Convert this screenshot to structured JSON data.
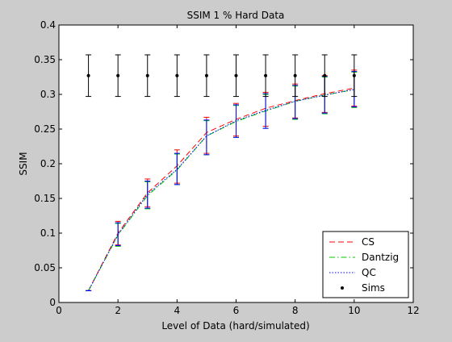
{
  "chart_data": {
    "type": "line",
    "title": "SSIM 1 % Hard Data",
    "xlabel": "Level of Data (hard/simulated)",
    "ylabel": "SSIM",
    "xlim": [
      0,
      12
    ],
    "ylim": [
      0,
      0.4
    ],
    "xticks": [
      0,
      2,
      4,
      6,
      8,
      10,
      12
    ],
    "yticks": [
      0,
      0.05,
      0.1,
      0.15,
      0.2,
      0.25,
      0.3,
      0.35,
      0.4
    ],
    "grid": false,
    "legend_position": "bottom-right",
    "x": [
      1,
      2,
      3,
      4,
      5,
      6,
      7,
      8,
      9,
      10
    ],
    "series": [
      {
        "name": "CS",
        "color": "#ff0000",
        "style": "dashed",
        "errorbar_color": "#ff0000",
        "values": [
          0.017,
          0.1,
          0.158,
          0.197,
          0.245,
          0.264,
          0.28,
          0.291,
          0.301,
          0.309
        ],
        "lower": [
          0.017,
          0.083,
          0.138,
          0.172,
          0.215,
          0.24,
          0.254,
          0.266,
          0.274,
          0.283
        ],
        "upper": [
          0.017,
          0.117,
          0.178,
          0.22,
          0.267,
          0.287,
          0.303,
          0.315,
          0.327,
          0.335
        ]
      },
      {
        "name": "Dantzig",
        "color": "#00cc00",
        "style": "dashdot",
        "errorbar_color": "#00cc00",
        "values": [
          0.017,
          0.097,
          0.154,
          0.191,
          0.24,
          0.261,
          0.276,
          0.29,
          0.299,
          0.307
        ],
        "lower": [
          0.017,
          0.081,
          0.135,
          0.17,
          0.213,
          0.238,
          0.251,
          0.264,
          0.272,
          0.281
        ],
        "upper": [
          0.017,
          0.114,
          0.174,
          0.214,
          0.262,
          0.284,
          0.3,
          0.312,
          0.325,
          0.332
        ]
      },
      {
        "name": "QC",
        "color": "#0000ff",
        "style": "dotted",
        "errorbar_color": "#0000ff",
        "values": [
          0.017,
          0.098,
          0.156,
          0.192,
          0.24,
          0.262,
          0.277,
          0.29,
          0.299,
          0.307
        ],
        "lower": [
          0.017,
          0.082,
          0.136,
          0.17,
          0.213,
          0.238,
          0.251,
          0.265,
          0.273,
          0.282
        ],
        "upper": [
          0.017,
          0.115,
          0.175,
          0.215,
          0.263,
          0.285,
          0.301,
          0.313,
          0.326,
          0.333
        ]
      },
      {
        "name": "Sims",
        "color": "#000000",
        "style": "points",
        "errorbar_color": "#000000",
        "values": [
          0.327,
          0.327,
          0.327,
          0.327,
          0.327,
          0.327,
          0.327,
          0.327,
          0.327,
          0.327
        ],
        "lower": [
          0.297,
          0.297,
          0.297,
          0.297,
          0.297,
          0.297,
          0.297,
          0.297,
          0.297,
          0.297
        ],
        "upper": [
          0.357,
          0.357,
          0.357,
          0.357,
          0.357,
          0.357,
          0.357,
          0.357,
          0.357,
          0.357
        ]
      }
    ]
  }
}
